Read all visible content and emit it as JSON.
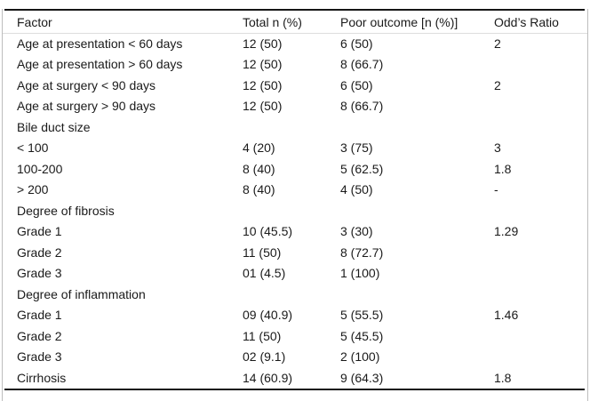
{
  "table": {
    "columns": [
      "Factor",
      "Total n (%)",
      "Poor outcome [n (%)]",
      "Odd’s Ratio"
    ],
    "rows": [
      [
        "Age at presentation < 60 days",
        "12 (50)",
        "6 (50)",
        "2"
      ],
      [
        "Age at presentation > 60 days",
        "12 (50)",
        "8 (66.7)",
        ""
      ],
      [
        "Age at surgery < 90 days",
        "12 (50)",
        "6 (50)",
        "2"
      ],
      [
        "Age at surgery > 90 days",
        "12 (50)",
        "8 (66.7)",
        ""
      ],
      [
        "Bile duct size",
        "",
        "",
        ""
      ],
      [
        "< 100",
        "4 (20)",
        "3 (75)",
        "3"
      ],
      [
        "100-200",
        "8 (40)",
        "5 (62.5)",
        "1.8"
      ],
      [
        "> 200",
        "8 (40)",
        "4 (50)",
        "-"
      ],
      [
        "Degree of fibrosis",
        "",
        "",
        ""
      ],
      [
        "Grade 1",
        "10 (45.5)",
        "3 (30)",
        "1.29"
      ],
      [
        "Grade 2",
        "11 (50)",
        "8 (72.7)",
        ""
      ],
      [
        "Grade 3",
        "01 (4.5)",
        "1 (100)",
        ""
      ],
      [
        "Degree of inflammation",
        "",
        "",
        ""
      ],
      [
        "Grade 1",
        "09 (40.9)",
        "5 (55.5)",
        "1.46"
      ],
      [
        "Grade 2",
        "11 (50)",
        "5 (45.5)",
        ""
      ],
      [
        "Grade 3",
        "02 (9.1)",
        "2 (100)",
        ""
      ],
      [
        "Cirrhosis",
        "14 (60.9)",
        "9 (64.3)",
        "1.8"
      ]
    ],
    "cell_names": [
      "cell-factor",
      "cell-total-n",
      "cell-poor-outcome",
      "cell-odds-ratio"
    ],
    "colors": {
      "text": "#1a1a1a",
      "rule_dark": "#161616",
      "rule_light": "#dedede",
      "frame": "#bdbdbd"
    }
  }
}
